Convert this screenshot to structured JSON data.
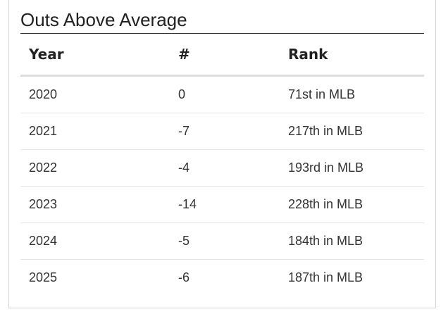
{
  "title": "Outs Above Average",
  "table": {
    "headers": [
      "Year",
      "#",
      "Rank"
    ],
    "rows": [
      {
        "year": "2020",
        "value": "0",
        "rank": "71st in MLB"
      },
      {
        "year": "2021",
        "value": "-7",
        "rank": "217th in MLB"
      },
      {
        "year": "2022",
        "value": "-4",
        "rank": "193rd in MLB"
      },
      {
        "year": "2023",
        "value": "-14",
        "rank": "228th in MLB"
      },
      {
        "year": "2024",
        "value": "-5",
        "rank": "184th in MLB"
      },
      {
        "year": "2025",
        "value": "-6",
        "rank": "187th in MLB"
      }
    ]
  }
}
